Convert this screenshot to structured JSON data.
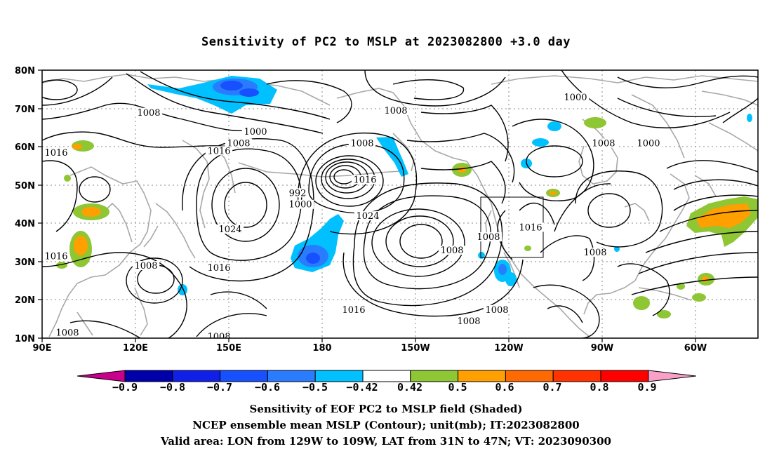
{
  "title": "Sensitivity of PC2 to MSLP at 2023082800 +3.0 day",
  "map": {
    "lat_labels": [
      "80N",
      "70N",
      "60N",
      "50N",
      "40N",
      "30N",
      "20N",
      "10N"
    ],
    "lon_labels": [
      "90E",
      "120E",
      "150E",
      "180",
      "150W",
      "120W",
      "90W",
      "60W"
    ],
    "contour_labels": [
      {
        "text": "1000",
        "lon": 166,
        "lat": 63.5
      },
      {
        "text": "1000",
        "lon": 182,
        "lat": 44.5
      },
      {
        "text": "992",
        "lon": 181,
        "lat": 47.5
      },
      {
        "text": "1008",
        "lon": 128,
        "lat": 68.5
      },
      {
        "text": "1008",
        "lon": 160,
        "lat": 60.5
      },
      {
        "text": "1008",
        "lon": 216,
        "lat": 69
      },
      {
        "text": "1008",
        "lon": 204,
        "lat": 60.5
      },
      {
        "text": "1008",
        "lon": 290,
        "lat": 60.5
      },
      {
        "text": "1000",
        "lon": 280,
        "lat": 72.5
      },
      {
        "text": "1000",
        "lon": 306,
        "lat": 60.5
      },
      {
        "text": "1016",
        "lon": 95,
        "lat": 58
      },
      {
        "text": "1016",
        "lon": 153,
        "lat": 58.5
      },
      {
        "text": "1016",
        "lon": 205,
        "lat": 51
      },
      {
        "text": "1024",
        "lon": 206,
        "lat": 41.5
      },
      {
        "text": "1024",
        "lon": 157,
        "lat": 38
      },
      {
        "text": "1016",
        "lon": 95,
        "lat": 31
      },
      {
        "text": "1008",
        "lon": 127,
        "lat": 28.5
      },
      {
        "text": "1016",
        "lon": 153,
        "lat": 28
      },
      {
        "text": "1008",
        "lon": 236,
        "lat": 32.5
      },
      {
        "text": "1008",
        "lon": 249,
        "lat": 36
      },
      {
        "text": "1016",
        "lon": 264,
        "lat": 38.5
      },
      {
        "text": "1008",
        "lon": 287,
        "lat": 32
      },
      {
        "text": "1016",
        "lon": 201,
        "lat": 17
      },
      {
        "text": "1008",
        "lon": 252,
        "lat": 17
      },
      {
        "text": "1008",
        "lon": 242,
        "lat": 14
      },
      {
        "text": "1008",
        "lon": 99,
        "lat": 11
      },
      {
        "text": "1008",
        "lon": 153,
        "lat": 10
      }
    ]
  },
  "colorbar": {
    "labels": [
      "−0.9",
      "−0.8",
      "−0.7",
      "−0.6",
      "−0.5",
      "−0.42",
      "0.42",
      "0.5",
      "0.6",
      "0.7",
      "0.8",
      "0.9"
    ],
    "colors": [
      "#0000aa",
      "#1020e8",
      "#1650ff",
      "#2a7cff",
      "#00c0ff",
      "#ffffff",
      "#8ec634",
      "#ffa000",
      "#ff6a00",
      "#ff3200",
      "#ff0000"
    ],
    "low_end_color": "#c8008c",
    "high_end_color": "#f8a0c8"
  },
  "footer": {
    "line1": "Sensitivity of EOF PC2 to MSLP field (Shaded)",
    "line2": "NCEP ensemble mean MSLP (Contour); unit(mb); IT:2023082800",
    "line3": "Valid area: LON from 129W to 109W, LAT from 31N to 47N; VT: 2023090300"
  }
}
